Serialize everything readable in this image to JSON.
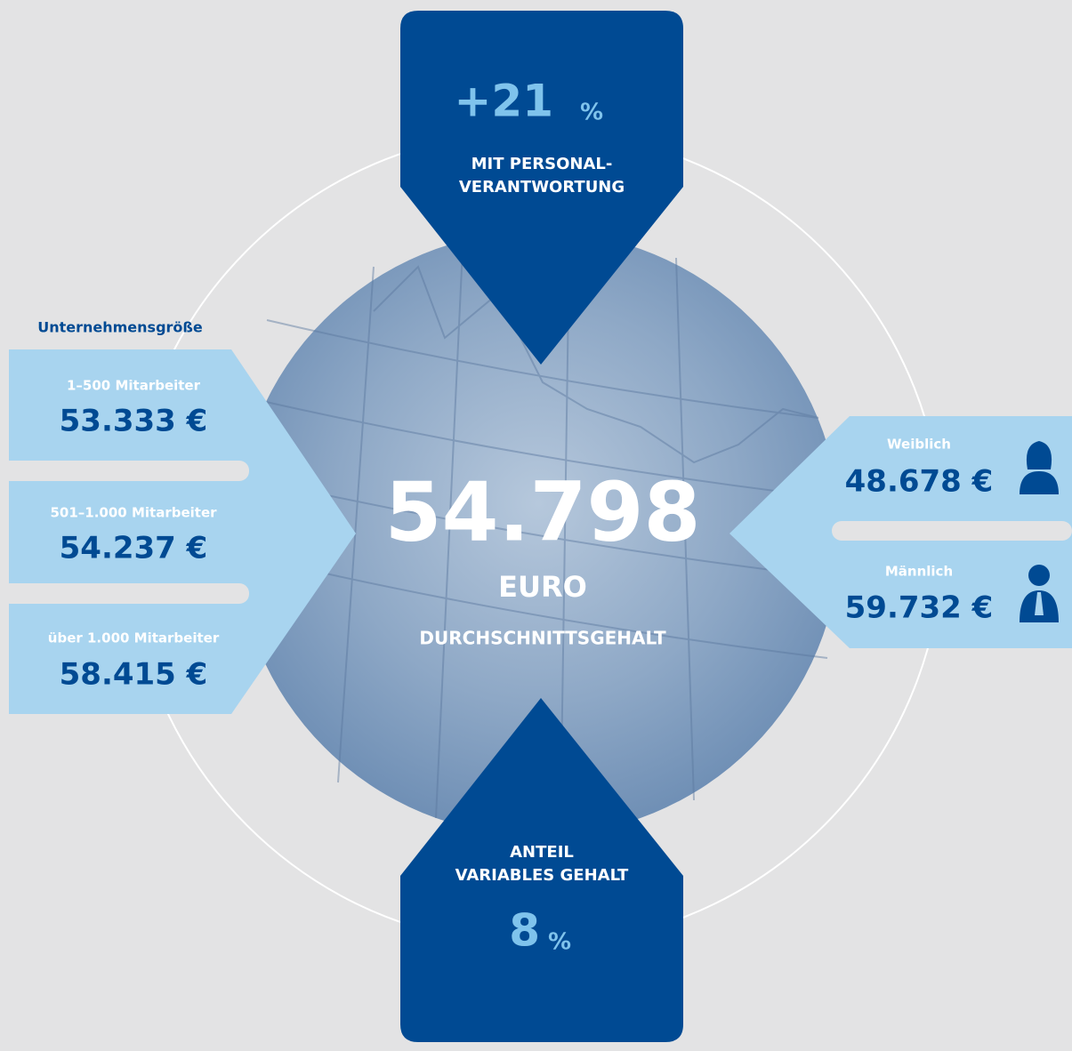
{
  "top": {
    "value": "+21",
    "unit": "%",
    "label_lines": [
      "MIT PERSONAL-",
      "VERANTWORTUNG"
    ]
  },
  "company_size": {
    "title": "Unternehmensgröße",
    "items": [
      {
        "label": "1–500 Mitarbeiter",
        "value": "53.333 €"
      },
      {
        "label": "501–1.000 Mitarbeiter",
        "value": "54.237 €"
      },
      {
        "label": "über 1.000 Mitarbeiter",
        "value": "58.415 €"
      }
    ]
  },
  "center": {
    "value": "54.798",
    "unit": "EURO",
    "label": "DURCHSCHNITTSGEHALT"
  },
  "gender": {
    "items": [
      {
        "label": "Weiblich",
        "value": "48.678 €"
      },
      {
        "label": "Männlich",
        "value": "59.732 €"
      }
    ]
  },
  "bottom": {
    "label_lines": [
      "ANTEIL",
      "VARIABLES GEHALT"
    ],
    "value": "8",
    "unit": "%"
  }
}
